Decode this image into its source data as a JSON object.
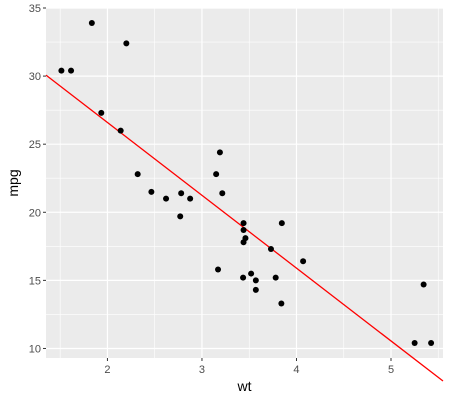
{
  "chart_data": {
    "type": "scatter",
    "title": "",
    "xlabel": "wt",
    "ylabel": "mpg",
    "xlim": [
      1.35,
      5.55
    ],
    "ylim": [
      9.3,
      35.0
    ],
    "x_ticks": [
      2,
      3,
      4,
      5
    ],
    "y_ticks": [
      10,
      15,
      20,
      25,
      30,
      35
    ],
    "x_minor": [
      1.5,
      2.5,
      3.5,
      4.5,
      5.5
    ],
    "y_minor": [
      12.5,
      17.5,
      22.5,
      27.5,
      32.5
    ],
    "grid": true,
    "legend": "none",
    "series": [
      {
        "kind": "points",
        "x": [
          2.62,
          2.875,
          2.32,
          3.215,
          3.44,
          3.46,
          3.57,
          3.19,
          3.15,
          3.44,
          3.44,
          4.07,
          3.73,
          3.78,
          5.25,
          5.424,
          5.345,
          2.2,
          1.615,
          1.835,
          2.465,
          3.52,
          3.435,
          3.84,
          3.845,
          1.935,
          2.14,
          1.513,
          3.17,
          2.77,
          3.57,
          2.78
        ],
        "y": [
          21.0,
          21.0,
          22.8,
          21.4,
          18.7,
          18.1,
          14.3,
          24.4,
          22.8,
          19.2,
          17.8,
          16.4,
          17.3,
          15.2,
          10.4,
          10.4,
          14.7,
          32.4,
          30.4,
          33.9,
          21.5,
          15.5,
          15.2,
          13.3,
          19.2,
          27.3,
          26.0,
          30.4,
          15.8,
          19.7,
          15.0,
          21.4
        ]
      },
      {
        "kind": "fit-line",
        "x": [
          1.35,
          5.55
        ],
        "y": [
          30.07,
          7.61
        ]
      }
    ],
    "colors": {
      "panel": "#ebebeb",
      "grid_major": "#ffffff",
      "point": "#000000",
      "line": "#ff0000"
    }
  }
}
